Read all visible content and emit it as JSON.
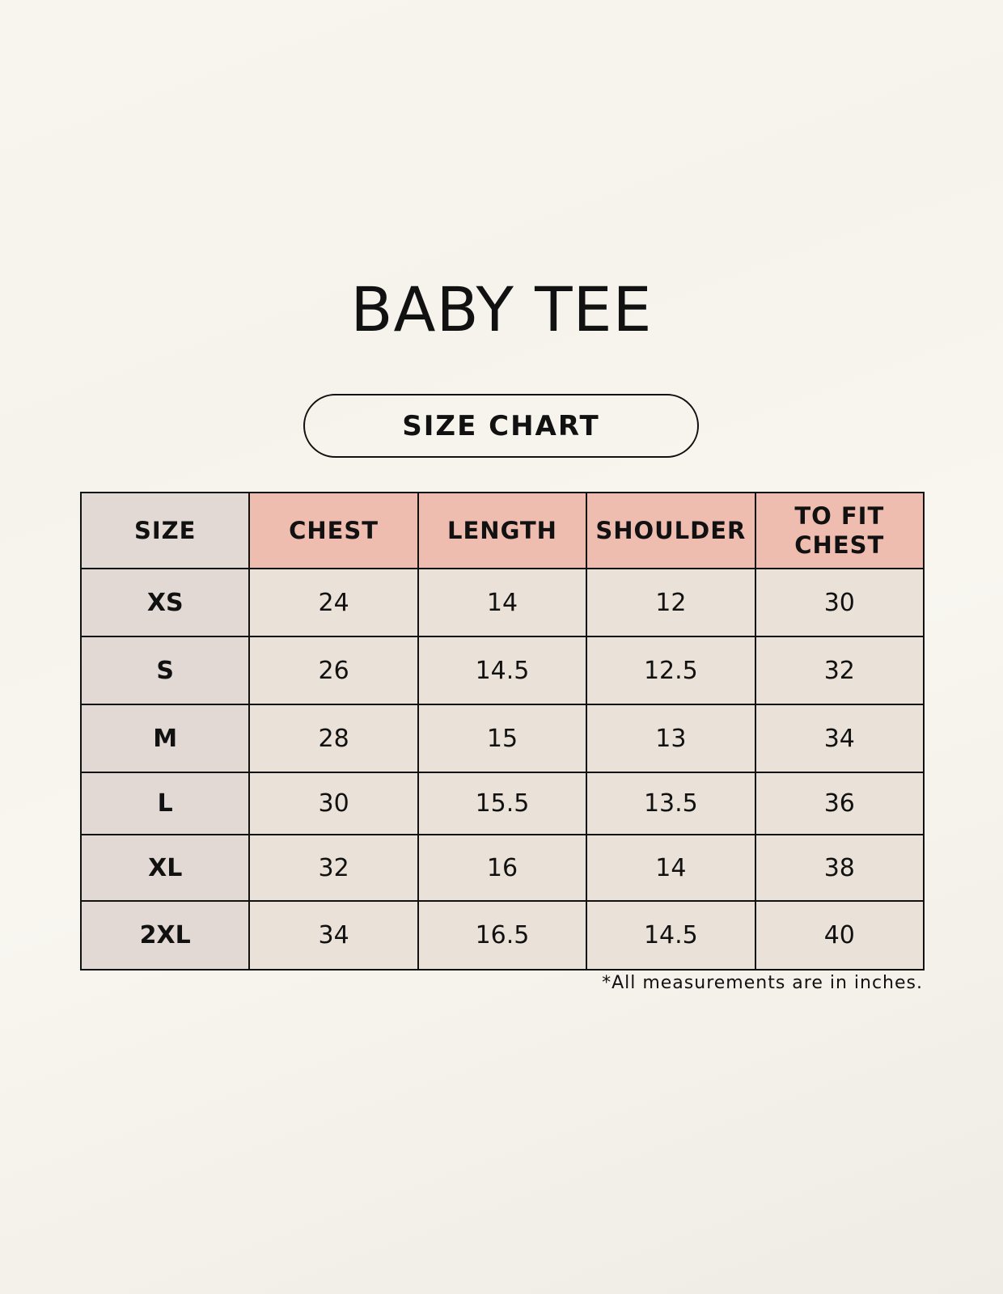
{
  "title": "BABY TEE",
  "subtitle": "SIZE CHART",
  "table": {
    "headers": [
      "SIZE",
      "CHEST",
      "LENGTH",
      "SHOULDER",
      "TO FIT CHEST"
    ],
    "rows": [
      [
        "XS",
        "24",
        "14",
        "12",
        "30"
      ],
      [
        "S",
        "26",
        "14.5",
        "12.5",
        "32"
      ],
      [
        "M",
        "28",
        "15",
        "13",
        "34"
      ],
      [
        "L",
        "30",
        "15.5",
        "13.5",
        "36"
      ],
      [
        "XL",
        "32",
        "16",
        "14",
        "38"
      ],
      [
        "2XL",
        "34",
        "16.5",
        "14.5",
        "40"
      ]
    ]
  },
  "footnote": "*All measurements are in inches.",
  "colors": {
    "header": "#eebdb0",
    "size_column": "#e2d9d4",
    "cell": "#eae2d8"
  }
}
